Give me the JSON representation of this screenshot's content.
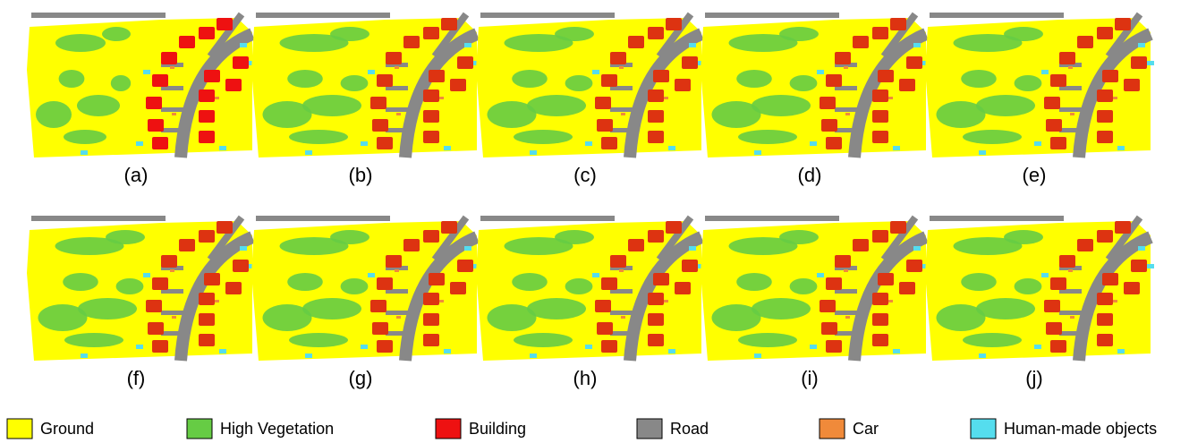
{
  "panels": [
    {
      "label": "(a)"
    },
    {
      "label": "(b)"
    },
    {
      "label": "(c)"
    },
    {
      "label": "(d)"
    },
    {
      "label": "(e)"
    },
    {
      "label": "(f)"
    },
    {
      "label": "(g)"
    },
    {
      "label": "(h)"
    },
    {
      "label": "(i)"
    },
    {
      "label": "(j)"
    }
  ],
  "legend": [
    {
      "label": "Ground",
      "color": "#ffff00"
    },
    {
      "label": "High Vegetation",
      "color": "#66cc44"
    },
    {
      "label": "Building",
      "color": "#ee1111"
    },
    {
      "label": "Road",
      "color": "#888888"
    },
    {
      "label": "Car",
      "color": "#f08a3a"
    },
    {
      "label": "Human-made objects",
      "color": "#55ddee"
    }
  ]
}
